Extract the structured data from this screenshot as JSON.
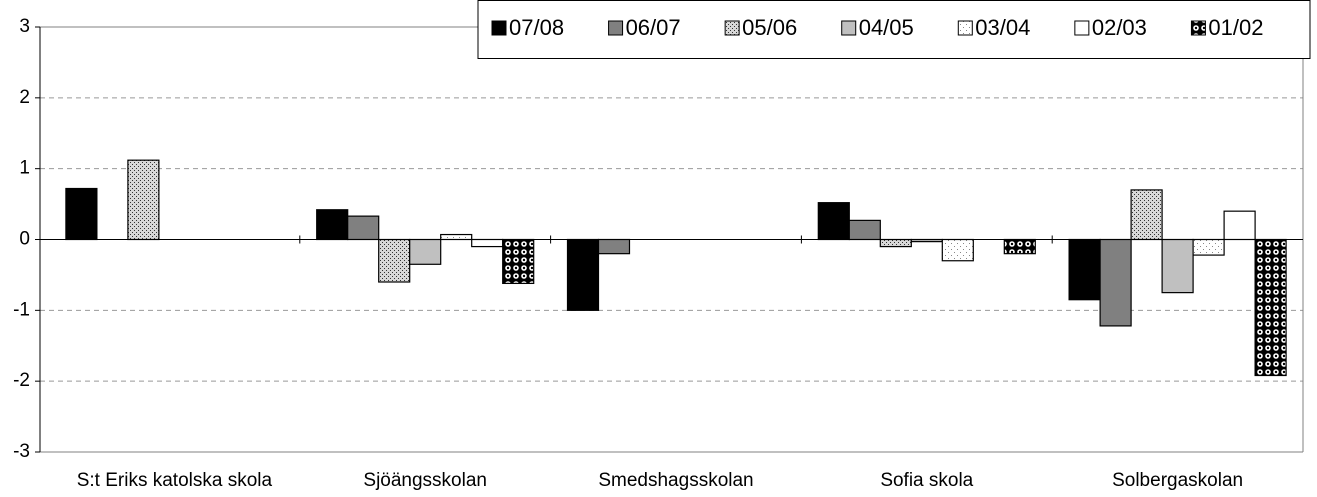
{
  "chart_data": {
    "type": "bar",
    "categories": [
      "S:t Eriks katolska skola",
      "Sjöängsskolan",
      "Smedshagsskolan",
      "Sofia skola",
      "Solbergaskolan"
    ],
    "series": [
      {
        "name": "07/08",
        "color": "#000000",
        "pattern": "solid",
        "values": [
          0.72,
          0.42,
          -1.0,
          0.52,
          -0.85
        ]
      },
      {
        "name": "06/07",
        "color": "#808080",
        "pattern": "solid",
        "values": [
          null,
          0.33,
          -0.2,
          0.27,
          -1.22
        ]
      },
      {
        "name": "05/06",
        "color": "#c8c8c8",
        "pattern": "dense-dots",
        "values": [
          1.12,
          -0.6,
          null,
          -0.1,
          0.7
        ]
      },
      {
        "name": "04/05",
        "color": "#c0c0c0",
        "pattern": "solid",
        "values": [
          null,
          -0.35,
          null,
          -0.03,
          -0.75
        ]
      },
      {
        "name": "03/04",
        "color": "#ffffff",
        "pattern": "sparse-dots",
        "values": [
          null,
          0.07,
          null,
          -0.3,
          -0.22
        ]
      },
      {
        "name": "02/03",
        "color": "#ffffff",
        "pattern": "solid",
        "values": [
          null,
          -0.1,
          null,
          null,
          0.4
        ]
      },
      {
        "name": "01/02",
        "color": "#000000",
        "pattern": "circles",
        "values": [
          null,
          -0.62,
          null,
          -0.2,
          -1.92
        ]
      }
    ],
    "ylim": [
      -3,
      3
    ],
    "yticks": [
      -3,
      -2,
      -1,
      0,
      1,
      2,
      3
    ],
    "grid": true,
    "legend": "top-right"
  }
}
